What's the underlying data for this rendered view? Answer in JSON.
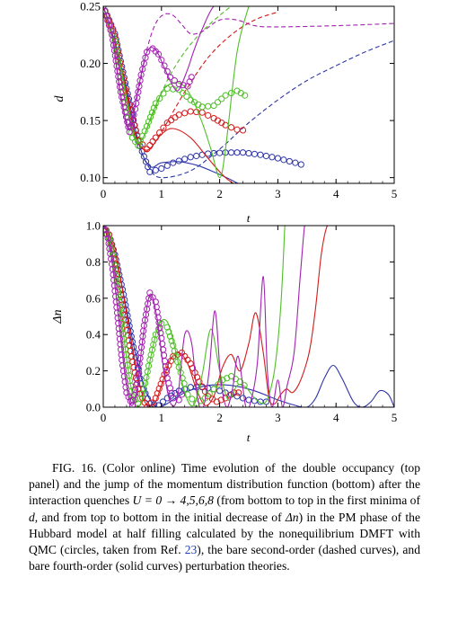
{
  "chart_data": [
    {
      "type": "line",
      "panel": "top",
      "xlabel": "t",
      "ylabel": "d",
      "xlim": [
        0,
        5
      ],
      "ylim": [
        0.095,
        0.25
      ],
      "xticks": [
        "0",
        "1",
        "2",
        "3",
        "4",
        "5"
      ],
      "yticks": [
        "0.10",
        "0.15",
        "0.20",
        "0.25"
      ],
      "series": [
        {
          "color": "#2e35a8",
          "style": "qmc",
          "x": [
            0,
            0.2,
            0.4,
            0.6,
            0.8,
            1.0,
            1.2,
            1.5,
            1.8,
            2.1,
            2.4,
            2.7,
            3.0,
            3.3,
            3.5
          ],
          "y": [
            0.25,
            0.226,
            0.178,
            0.132,
            0.105,
            0.108,
            0.113,
            0.118,
            0.121,
            0.122,
            0.122,
            0.12,
            0.117,
            0.113,
            0.11
          ]
        },
        {
          "color": "#2e35a8",
          "style": "dashed",
          "x": [
            0,
            0.3,
            0.6,
            0.8,
            1.0,
            1.5,
            2.0,
            2.5,
            3.0,
            3.5,
            4.0,
            4.5,
            5.0
          ],
          "y": [
            0.25,
            0.2,
            0.132,
            0.108,
            0.1,
            0.106,
            0.125,
            0.148,
            0.168,
            0.185,
            0.198,
            0.21,
            0.22
          ]
        },
        {
          "color": "#2e35a8",
          "style": "solid",
          "x": [
            0,
            0.3,
            0.6,
            0.8,
            1.0,
            1.3,
            1.6,
            1.9,
            2.2,
            2.5
          ],
          "y": [
            0.25,
            0.2,
            0.132,
            0.11,
            0.113,
            0.114,
            0.111,
            0.105,
            0.098,
            0.09
          ]
        },
        {
          "color": "#d21c1c",
          "style": "qmc",
          "x": [
            0,
            0.2,
            0.4,
            0.6,
            0.75,
            0.9,
            1.1,
            1.3,
            1.5,
            1.7,
            1.9,
            2.1,
            2.3,
            2.5
          ],
          "y": [
            0.25,
            0.224,
            0.172,
            0.133,
            0.125,
            0.135,
            0.148,
            0.155,
            0.158,
            0.157,
            0.152,
            0.146,
            0.142,
            0.141
          ]
        },
        {
          "color": "#d21c1c",
          "style": "dashed",
          "x": [
            0,
            0.3,
            0.55,
            0.75,
            1.0,
            1.4,
            1.8,
            2.2,
            2.6,
            3.0
          ],
          "y": [
            0.25,
            0.198,
            0.138,
            0.123,
            0.14,
            0.175,
            0.205,
            0.225,
            0.238,
            0.245
          ]
        },
        {
          "color": "#d21c1c",
          "style": "solid",
          "x": [
            0,
            0.3,
            0.55,
            0.75,
            1.0,
            1.2,
            1.5,
            1.8,
            2.1,
            2.4,
            2.6
          ],
          "y": [
            0.25,
            0.198,
            0.138,
            0.124,
            0.138,
            0.143,
            0.135,
            0.117,
            0.1,
            0.09,
            0.085
          ]
        },
        {
          "color": "#4fbf28",
          "style": "qmc",
          "x": [
            0,
            0.2,
            0.35,
            0.5,
            0.6,
            0.75,
            0.9,
            1.1,
            1.3,
            1.5,
            1.7,
            1.9,
            2.1,
            2.3,
            2.5
          ],
          "y": [
            0.25,
            0.22,
            0.17,
            0.135,
            0.128,
            0.145,
            0.165,
            0.178,
            0.177,
            0.168,
            0.162,
            0.163,
            0.172,
            0.176,
            0.17
          ]
        },
        {
          "color": "#4fbf28",
          "style": "dashed",
          "x": [
            0,
            0.3,
            0.5,
            0.65,
            0.85,
            1.1,
            1.4,
            1.7,
            2.0,
            2.2
          ],
          "y": [
            0.25,
            0.196,
            0.14,
            0.133,
            0.155,
            0.185,
            0.21,
            0.228,
            0.242,
            0.25
          ]
        },
        {
          "color": "#4fbf28",
          "style": "solid",
          "x": [
            0,
            0.3,
            0.5,
            0.65,
            0.85,
            1.05,
            1.3,
            1.5,
            1.7,
            1.85,
            2.0,
            2.1,
            2.3,
            2.5
          ],
          "y": [
            0.25,
            0.196,
            0.14,
            0.132,
            0.157,
            0.178,
            0.183,
            0.172,
            0.148,
            0.125,
            0.1,
            0.125,
            0.21,
            0.25
          ]
        },
        {
          "color": "#a222b0",
          "style": "qmc",
          "x": [
            0,
            0.15,
            0.3,
            0.45,
            0.55,
            0.65,
            0.75,
            0.85,
            0.95,
            1.05,
            1.15,
            1.3,
            1.45,
            1.55
          ],
          "y": [
            0.25,
            0.225,
            0.175,
            0.14,
            0.16,
            0.19,
            0.21,
            0.213,
            0.208,
            0.198,
            0.188,
            0.182,
            0.18,
            0.192
          ]
        },
        {
          "color": "#a222b0",
          "style": "dashed",
          "x": [
            0,
            0.15,
            0.3,
            0.45,
            0.6,
            0.75,
            0.9,
            1.05,
            1.2,
            1.35,
            1.5,
            1.7,
            2.0,
            2.3,
            2.6,
            3.0,
            4.0,
            5.0
          ],
          "y": [
            0.25,
            0.225,
            0.172,
            0.145,
            0.175,
            0.212,
            0.235,
            0.243,
            0.242,
            0.234,
            0.226,
            0.228,
            0.238,
            0.238,
            0.233,
            0.232,
            0.233,
            0.235
          ]
        },
        {
          "color": "#a222b0",
          "style": "solid",
          "x": [
            0,
            0.15,
            0.3,
            0.45,
            0.6,
            0.75,
            0.9,
            1.05,
            1.2,
            1.3,
            1.45,
            1.55,
            1.7,
            1.9,
            2.1
          ],
          "y": [
            0.25,
            0.225,
            0.172,
            0.142,
            0.178,
            0.21,
            0.212,
            0.196,
            0.18,
            0.177,
            0.195,
            0.21,
            0.23,
            0.25,
            0.25
          ]
        }
      ]
    },
    {
      "type": "line",
      "panel": "bottom",
      "xlabel": "t",
      "ylabel": "Δn",
      "xlim": [
        0,
        5
      ],
      "ylim": [
        0,
        1.0
      ],
      "xticks": [
        "0",
        "1",
        "2",
        "3",
        "4",
        "5"
      ],
      "yticks": [
        "0.0",
        "0.2",
        "0.4",
        "0.6",
        "0.8",
        "1.0"
      ],
      "series": [
        {
          "color": "#2e35a8",
          "style": "qmc",
          "x": [
            0,
            0.1,
            0.2,
            0.35,
            0.5,
            0.65,
            0.8,
            0.95,
            1.1,
            1.3,
            1.5,
            1.7,
            1.9,
            2.1,
            2.3,
            2.5,
            2.7,
            2.9
          ],
          "y": [
            1.0,
            0.95,
            0.84,
            0.62,
            0.36,
            0.13,
            0.02,
            0.01,
            0.05,
            0.09,
            0.11,
            0.11,
            0.1,
            0.08,
            0.06,
            0.04,
            0.03,
            0.03
          ]
        },
        {
          "color": "#2e35a8",
          "style": "solid",
          "x": [
            0,
            0.1,
            0.25,
            0.4,
            0.55,
            0.7,
            0.85,
            0.95,
            1.1,
            1.4,
            1.8,
            2.2,
            2.6,
            3.0,
            3.3,
            3.5,
            3.65,
            3.8,
            3.95,
            4.1,
            4.3,
            4.45,
            4.6,
            4.75,
            4.9,
            5.0
          ],
          "y": [
            1.0,
            0.96,
            0.78,
            0.54,
            0.3,
            0.11,
            0.02,
            0.0,
            0.02,
            0.08,
            0.12,
            0.12,
            0.09,
            0.04,
            0.01,
            0.0,
            0.05,
            0.16,
            0.23,
            0.16,
            0.03,
            0.0,
            0.03,
            0.09,
            0.07,
            0.0
          ]
        },
        {
          "color": "#d21c1c",
          "style": "qmc",
          "x": [
            0,
            0.1,
            0.2,
            0.3,
            0.45,
            0.6,
            0.75,
            0.9,
            1.05,
            1.2,
            1.35,
            1.5,
            1.65,
            1.8,
            1.95,
            2.1,
            2.25,
            2.4
          ],
          "y": [
            1.0,
            0.95,
            0.82,
            0.62,
            0.34,
            0.1,
            0.0,
            0.05,
            0.18,
            0.28,
            0.3,
            0.24,
            0.14,
            0.06,
            0.03,
            0.05,
            0.08,
            0.08
          ]
        },
        {
          "color": "#d21c1c",
          "style": "solid",
          "x": [
            0,
            0.1,
            0.25,
            0.4,
            0.55,
            0.7,
            0.85,
            1.0,
            1.15,
            1.3,
            1.45,
            1.6,
            1.75,
            1.9,
            2.05,
            2.2,
            2.35,
            2.5,
            2.62,
            2.75,
            2.85,
            2.95,
            3.05,
            3.15,
            3.25,
            3.35,
            3.45,
            3.55,
            3.65,
            3.75,
            3.85,
            3.95
          ],
          "y": [
            1.0,
            0.95,
            0.78,
            0.52,
            0.24,
            0.04,
            0.0,
            0.12,
            0.26,
            0.3,
            0.24,
            0.1,
            0.01,
            0.06,
            0.22,
            0.29,
            0.2,
            0.35,
            0.52,
            0.3,
            0.05,
            0.02,
            0.07,
            0.1,
            0.08,
            0.12,
            0.2,
            0.32,
            0.55,
            0.85,
            1.0,
            1.0
          ]
        },
        {
          "color": "#4fbf28",
          "style": "qmc",
          "x": [
            0,
            0.1,
            0.2,
            0.3,
            0.4,
            0.5,
            0.6,
            0.7,
            0.8,
            0.9,
            1.0,
            1.1,
            1.2,
            1.3,
            1.45,
            1.6,
            1.75,
            1.9,
            2.05,
            2.2,
            2.35,
            2.5
          ],
          "y": [
            1.0,
            0.93,
            0.78,
            0.52,
            0.26,
            0.06,
            0.02,
            0.1,
            0.26,
            0.4,
            0.46,
            0.44,
            0.34,
            0.22,
            0.07,
            0.02,
            0.05,
            0.1,
            0.15,
            0.17,
            0.14,
            0.1
          ]
        },
        {
          "color": "#4fbf28",
          "style": "solid",
          "x": [
            0,
            0.1,
            0.22,
            0.34,
            0.46,
            0.58,
            0.7,
            0.82,
            0.95,
            1.1,
            1.25,
            1.4,
            1.55,
            1.7,
            1.85,
            2.0,
            2.15,
            2.3,
            2.45,
            2.6,
            2.75,
            2.85,
            2.95,
            3.05,
            3.12
          ],
          "y": [
            1.0,
            0.93,
            0.72,
            0.42,
            0.14,
            0.0,
            0.08,
            0.28,
            0.45,
            0.47,
            0.3,
            0.08,
            0.01,
            0.18,
            0.43,
            0.2,
            0.04,
            0.12,
            0.11,
            0.05,
            0.02,
            0.07,
            0.22,
            0.55,
            1.0
          ]
        },
        {
          "color": "#a222b0",
          "style": "qmc",
          "x": [
            0,
            0.08,
            0.16,
            0.24,
            0.32,
            0.4,
            0.5,
            0.6,
            0.7,
            0.8,
            0.9,
            1.0,
            1.1,
            1.2,
            1.3,
            1.4
          ],
          "y": [
            1.0,
            0.93,
            0.76,
            0.52,
            0.26,
            0.08,
            0.01,
            0.18,
            0.45,
            0.63,
            0.58,
            0.38,
            0.16,
            0.05,
            0.04,
            0.1
          ]
        },
        {
          "color": "#a222b0",
          "style": "solid",
          "x": [
            0,
            0.08,
            0.18,
            0.28,
            0.38,
            0.48,
            0.58,
            0.68,
            0.8,
            0.92,
            1.04,
            1.16,
            1.28,
            1.4,
            1.52,
            1.62,
            1.72,
            1.82,
            1.92,
            2.02,
            2.12,
            2.22,
            2.32,
            2.45,
            2.55,
            2.65,
            2.75,
            2.82,
            2.9,
            3.0,
            3.08,
            3.16,
            3.28,
            3.38,
            3.46,
            3.5
          ],
          "y": [
            1.0,
            0.94,
            0.73,
            0.44,
            0.16,
            0.01,
            0.1,
            0.38,
            0.62,
            0.5,
            0.2,
            0.02,
            0.06,
            0.4,
            0.35,
            0.05,
            0.0,
            0.2,
            0.53,
            0.15,
            0.0,
            0.1,
            0.28,
            0.0,
            0.05,
            0.25,
            0.72,
            0.2,
            0.0,
            0.15,
            0.0,
            0.12,
            0.3,
            0.7,
            1.0,
            1.0
          ]
        }
      ]
    }
  ],
  "axes_labels": {
    "top": {
      "x_label": "t",
      "y_label": "d"
    },
    "bottom": {
      "x_label": "t",
      "y_label": "Δn"
    }
  },
  "caption": {
    "prefix": "FIG. 16. (Color online) Time evolution of the double occupancy (top panel) and the jump of the momentum distribution function (bottom) after the interaction quenches ",
    "math": "U = 0 → 4,5,6,8",
    "mid1": " (from bottom to top in the first minima of ",
    "var_d": "d",
    "mid2": ", and from top to bottom in the initial decrease of ",
    "var_dn": "Δn",
    "mid3": ") in the PM phase of the Hubbard model at half filling calculated by the nonequilibrium DMFT with QMC (circles, taken from Ref. ",
    "ref": "23",
    "suffix": "), the bare second-order (dashed curves), and bare fourth-order (solid curves) perturbation theories."
  }
}
